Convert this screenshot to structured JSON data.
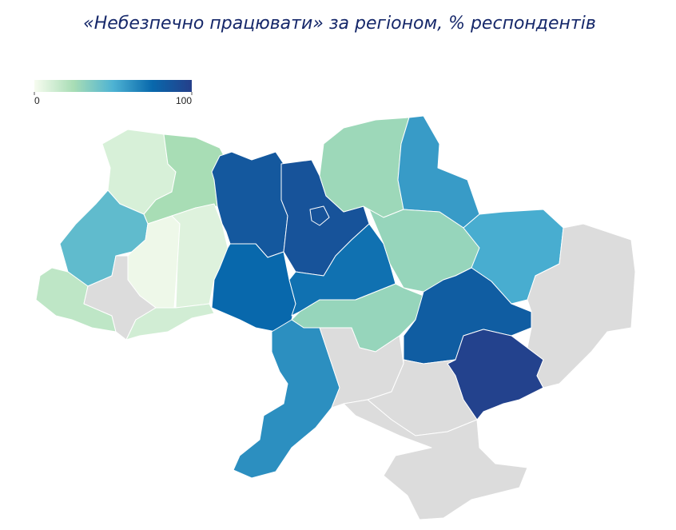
{
  "chart_data": {
    "type": "choropleth",
    "title": "«Небезпечно працювати» за регіоном, % респондентів",
    "values": [
      10,
      25,
      45,
      3,
      8,
      18,
      null,
      12,
      85,
      88,
      88,
      75,
      72,
      28,
      58,
      30,
      52,
      30,
      62,
      null,
      82,
      98,
      null,
      null,
      null
    ],
    "colorscale": [
      "#f7fcf0",
      "#a8ddb5",
      "#4eb3d3",
      "#0868ac",
      "#253f8a"
    ],
    "missing_color": "#dcdcdc",
    "legend_lim": [
      0,
      100
    ],
    "legend_ticks": [
      0,
      100
    ]
  }
}
